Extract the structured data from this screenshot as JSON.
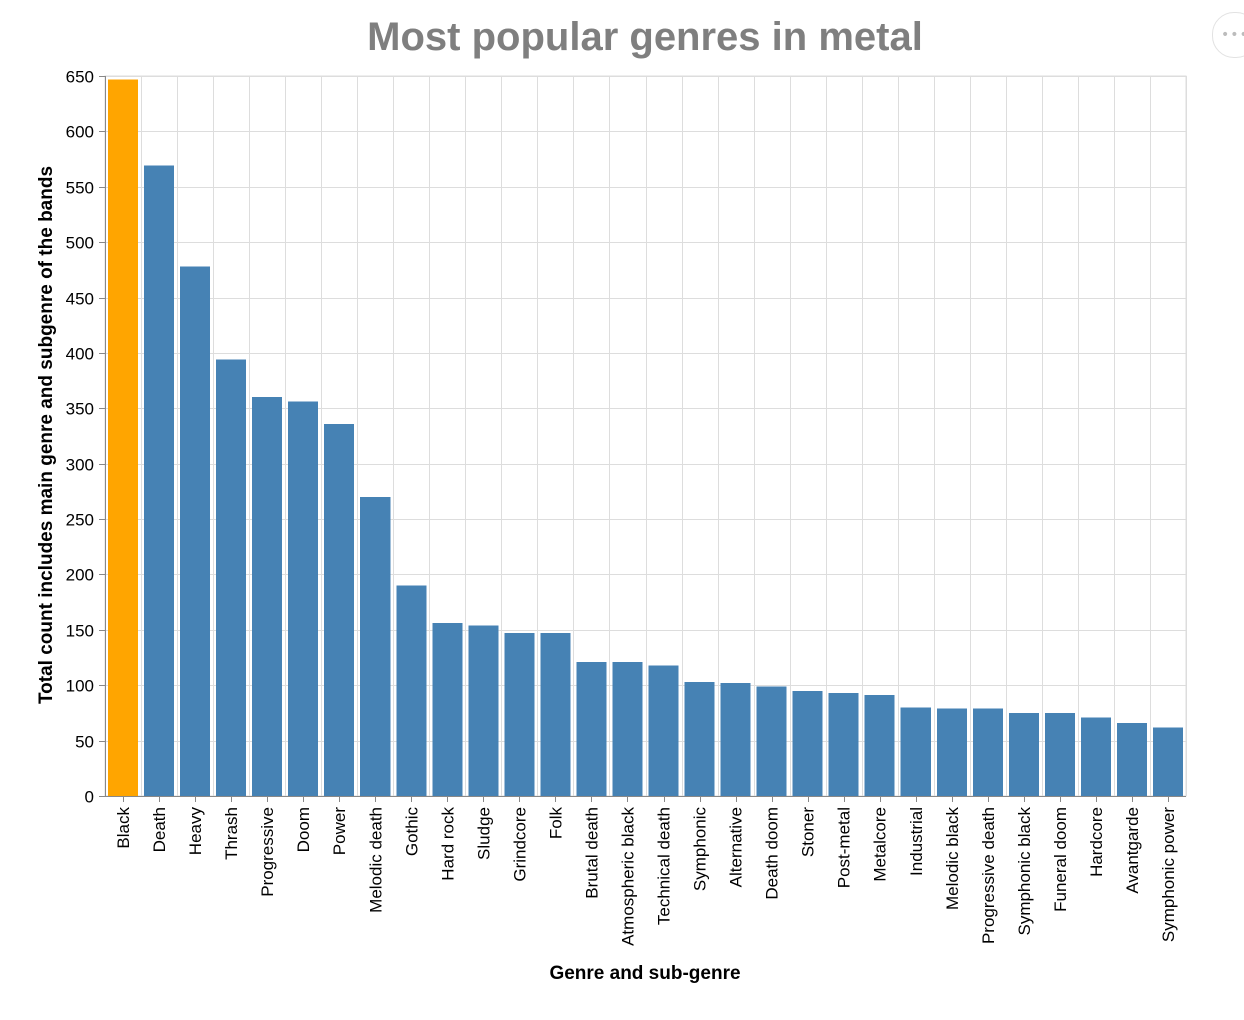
{
  "chart_data": {
    "type": "bar",
    "title": "Most popular genres in metal",
    "xlabel": "Genre and sub-genre",
    "ylabel": "Total count includes main genre and subgenre of the bands",
    "ylim": [
      0,
      650
    ],
    "yticks": [
      0,
      50,
      100,
      150,
      200,
      250,
      300,
      350,
      400,
      450,
      500,
      550,
      600,
      650
    ],
    "grid": true,
    "categories": [
      "Black",
      "Death",
      "Heavy",
      "Thrash",
      "Progressive",
      "Doom",
      "Power",
      "Melodic death",
      "Gothic",
      "Hard rock",
      "Sludge",
      "Grindcore",
      "Folk",
      "Brutal death",
      "Atmospheric black",
      "Technical death",
      "Symphonic",
      "Alternative",
      "Death doom",
      "Stoner",
      "Post-metal",
      "Metalcore",
      "Industrial",
      "Melodic black",
      "Progressive death",
      "Symphonic black",
      "Funeral doom",
      "Hardcore",
      "Avantgarde",
      "Symphonic power"
    ],
    "values": [
      647,
      569,
      478,
      394,
      360,
      356,
      336,
      270,
      190,
      156,
      154,
      147,
      147,
      121,
      121,
      118,
      103,
      102,
      99,
      95,
      93,
      91,
      80,
      79,
      79,
      75,
      75,
      71,
      66,
      62
    ],
    "highlight_index": 0,
    "colors": {
      "bar": "#4682b4",
      "highlight": "#ffa500"
    }
  },
  "menu": {
    "icon": "ellipsis-icon",
    "glyph": "•••"
  }
}
